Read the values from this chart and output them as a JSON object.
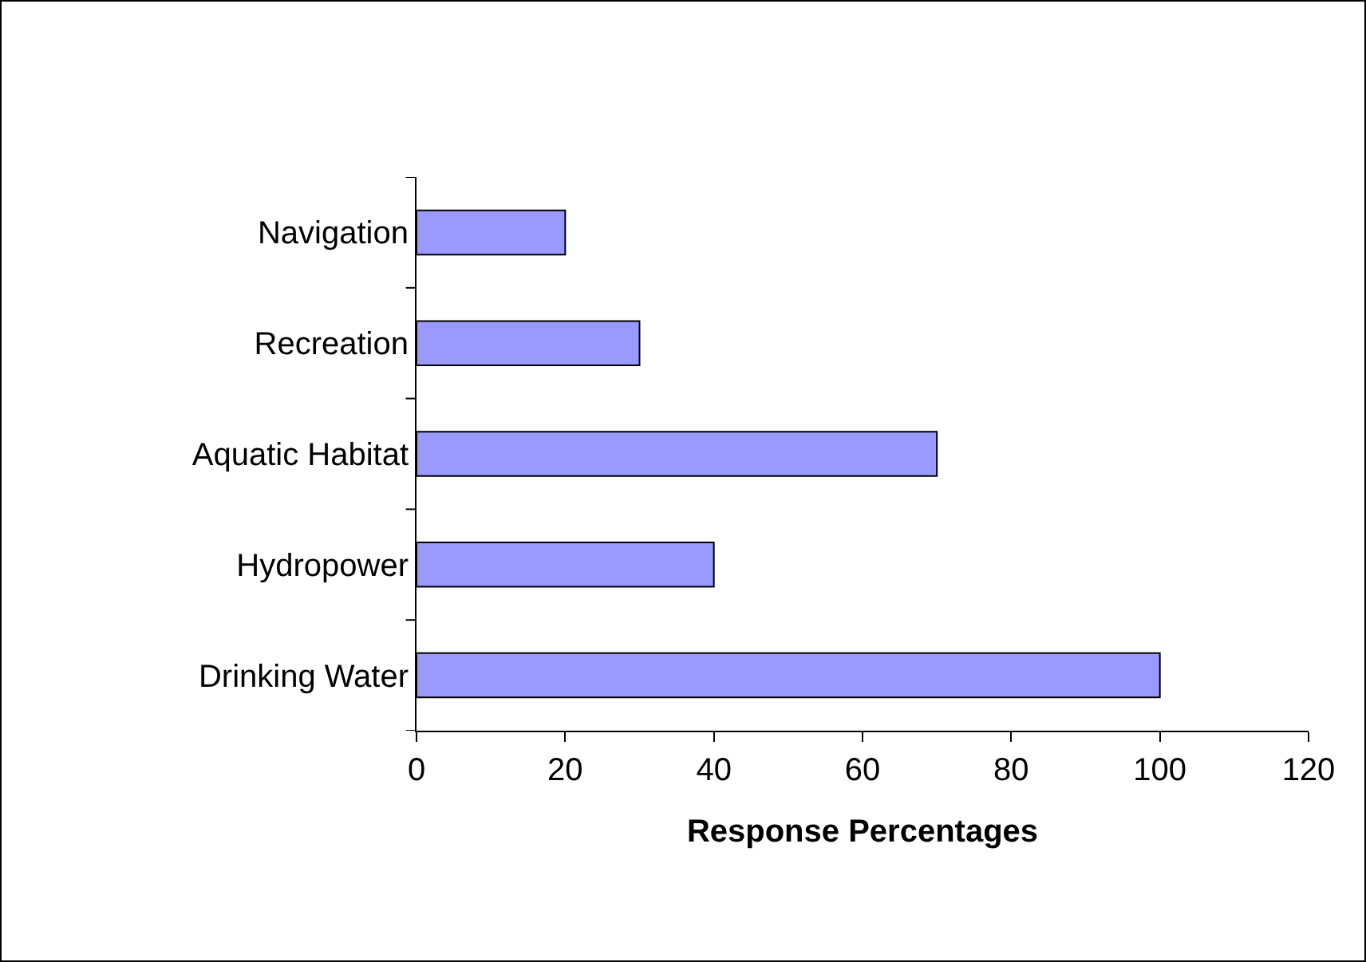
{
  "chart_data": {
    "type": "bar",
    "orientation": "horizontal",
    "xlabel": "Response Percentages",
    "categories": [
      "Navigation",
      "Recreation",
      "Aquatic Habitat",
      "Hydropower",
      "Drinking Water"
    ],
    "values": [
      20,
      30,
      70,
      40,
      100
    ],
    "color": "#9999ff",
    "xlim": [
      0,
      120
    ],
    "xticks": [
      0,
      20,
      40,
      60,
      80,
      100,
      120
    ],
    "grid": false
  }
}
